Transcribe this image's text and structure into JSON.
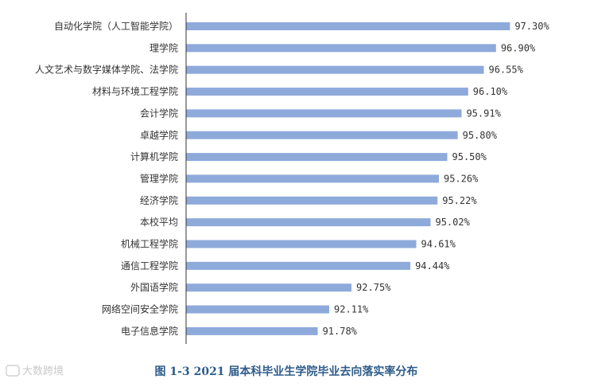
{
  "chart_data": {
    "type": "bar",
    "orientation": "horizontal",
    "categories": [
      "自动化学院（人工智能学院）",
      "理学院",
      "人文艺术与数字媒体学院、法学院",
      "材料与环境工程学院",
      "会计学院",
      "卓越学院",
      "计算机学院",
      "管理学院",
      "经济学院",
      "本校平均",
      "机械工程学院",
      "通信工程学院",
      "外国语学院",
      "网络空间安全学院",
      "电子信息学院"
    ],
    "values": [
      97.3,
      96.9,
      96.55,
      96.1,
      95.91,
      95.8,
      95.5,
      95.26,
      95.22,
      95.02,
      94.61,
      94.44,
      92.75,
      92.11,
      91.78
    ],
    "value_labels": [
      "97.30%",
      "96.90%",
      "96.55%",
      "96.10%",
      "95.91%",
      "95.80%",
      "95.50%",
      "95.26%",
      "95.22%",
      "95.02%",
      "94.61%",
      "94.44%",
      "92.75%",
      "92.11%",
      "91.78%"
    ],
    "title": "图 1-3 2021 届本科毕业生学院毕业去向落实率分布",
    "xlabel": "",
    "ylabel": "",
    "xlim": [
      88,
      98
    ],
    "grid": false,
    "legend": "none",
    "bar_color": "#8eaadb",
    "title_color": "#2e5c8a"
  },
  "watermark": "大数跨境"
}
